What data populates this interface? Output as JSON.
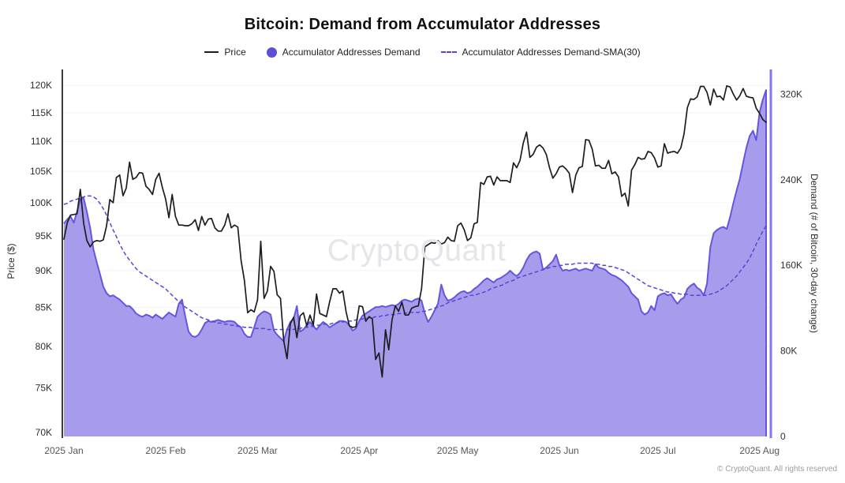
{
  "title": "Bitcoin: Demand from Accumulator Addresses",
  "watermark": "CryptoQuant",
  "copyright": "© CryptoQuant. All rights reserved",
  "legend": [
    {
      "label": "Price",
      "swatch": "line",
      "color": "#1d1d21"
    },
    {
      "label": "Accumulator Addresses Demand",
      "swatch": "dot",
      "color": "#5b4fd6"
    },
    {
      "label": "Accumulator Addresses Demand-SMA(30)",
      "swatch": "dashed",
      "color": "#5546d8"
    }
  ],
  "colors": {
    "price_line": "#1d1d21",
    "area_fill": "#a79bec",
    "area_border": "#6456dd",
    "sma_line": "#5546d8",
    "left_spine": "#3c3c43",
    "right_spine": "#8276f1",
    "grid": "#f3f3f6",
    "tick_text": "#2e2e33",
    "month_text": "#55555d"
  },
  "chart_data": {
    "type": "line+area",
    "title": "Bitcoin: Demand from Accumulator Addresses",
    "start_date": "2025-01-01",
    "end_date": "2025-08-03",
    "n_points": 215,
    "x_tick_labels": [
      "2025 Jan",
      "2025 Feb",
      "2025 Mar",
      "2025 Apr",
      "2025 May",
      "2025 Jun",
      "2025 Jul",
      "2025 Aug"
    ],
    "x_tick_day_offsets": [
      0,
      31,
      59,
      90,
      120,
      151,
      181,
      212
    ],
    "left_axis": {
      "title": "Price ($)",
      "scale": "log",
      "tick_labels": [
        "70K",
        "75K",
        "80K",
        "85K",
        "90K",
        "95K",
        "100K",
        "105K",
        "110K",
        "115K",
        "120K"
      ],
      "tick_values_k": [
        70,
        75,
        80,
        85,
        90,
        95,
        100,
        105,
        110,
        115,
        120
      ]
    },
    "right_axis": {
      "title": "Demand (# of Bitcoin, 30-day change)",
      "scale": "linear",
      "tick_labels": [
        "0",
        "80K",
        "160K",
        "240K",
        "320K"
      ],
      "tick_values_k": [
        0,
        80,
        160,
        240,
        320
      ]
    },
    "series": [
      {
        "name": "Price",
        "axis": "left",
        "unit": "USD thousands",
        "values": [
          94.5,
          96.9,
          98.1,
          98.2,
          98.3,
          102.1,
          96.9,
          94.3,
          93.4,
          94.1,
          94.3,
          94.2,
          94.4,
          96.5,
          100.5,
          100.0,
          104.0,
          104.4,
          101.1,
          102.3,
          106.5,
          103.7,
          104.0,
          104.8,
          104.7,
          102.6,
          102.1,
          101.3,
          103.7,
          104.7,
          102.4,
          100.6,
          97.7,
          101.3,
          97.9,
          96.6,
          96.6,
          96.5,
          96.5,
          96.8,
          97.4,
          95.8,
          97.9,
          96.6,
          97.5,
          97.6,
          96.2,
          95.7,
          95.7,
          96.6,
          98.3,
          96.2,
          96.6,
          96.3,
          91.4,
          88.7,
          84.3,
          84.7,
          84.4,
          86.0,
          94.2,
          86.2,
          87.2,
          90.6,
          89.9,
          86.7,
          86.2,
          80.7,
          78.5,
          82.9,
          83.7,
          81.1,
          83.9,
          84.3,
          82.6,
          84.0,
          82.7,
          86.8,
          84.2,
          84.0,
          83.8,
          85.8,
          87.5,
          87.5,
          86.9,
          87.2,
          84.4,
          82.6,
          82.4,
          82.5,
          85.2,
          85.1,
          83.2,
          83.8,
          83.5,
          78.4,
          79.2,
          76.3,
          82.1,
          79.6,
          83.4,
          85.2,
          84.5,
          85.7,
          84.0,
          84.0,
          84.9,
          85.1,
          85.2,
          87.5,
          93.4,
          93.7,
          94.0,
          93.9,
          94.3,
          93.8,
          94.0,
          94.8,
          94.3,
          94.2,
          96.5,
          96.9,
          95.9,
          94.3,
          94.7,
          96.8,
          97.0,
          103.2,
          102.9,
          104.1,
          104.2,
          102.8,
          104.1,
          103.5,
          103.5,
          103.5,
          103.2,
          106.4,
          105.6,
          106.8,
          109.7,
          111.6,
          107.3,
          107.8,
          109.0,
          109.4,
          108.9,
          107.8,
          105.6,
          103.9,
          104.6,
          105.7,
          105.9,
          105.4,
          104.7,
          101.6,
          104.4,
          105.6,
          105.8,
          110.3,
          110.2,
          108.7,
          105.9,
          106.0,
          105.5,
          105.5,
          106.8,
          104.6,
          104.9,
          104.1,
          101.0,
          101.5,
          99.5,
          105.2,
          106.1,
          107.3,
          107.0,
          107.1,
          108.3,
          108.1,
          107.2,
          105.7,
          105.9,
          109.6,
          108.0,
          108.2,
          108.3,
          108.0,
          108.9,
          111.3,
          115.9,
          117.5,
          117.4,
          117.9,
          119.8,
          119.8,
          118.7,
          116.4,
          119.3,
          117.9,
          118.0,
          117.3,
          119.9,
          119.7,
          118.4,
          117.3,
          118.1,
          119.4,
          118.0,
          117.8,
          117.7,
          115.8,
          114.9,
          113.8,
          113.3
        ]
      },
      {
        "name": "Accumulator Addresses Demand",
        "axis": "right",
        "unit": "BTC thousands",
        "values": [
          199,
          203,
          206,
          200,
          210,
          222,
          223,
          210,
          195,
          175,
          163,
          152,
          140,
          134,
          131,
          132,
          130,
          128,
          125,
          122,
          122,
          119,
          115,
          113,
          112,
          114,
          113,
          111,
          114,
          112,
          110,
          113,
          116,
          114,
          112,
          124,
          128,
          112,
          98,
          94,
          93,
          95,
          100,
          106,
          108,
          107,
          108,
          109,
          108,
          107,
          108,
          108,
          107,
          104,
          102,
          96,
          93,
          93,
          102,
          112,
          115,
          117,
          116,
          114,
          99,
          95,
          92,
          89,
          100,
          107,
          110,
          122,
          98,
          100,
          104,
          107,
          103,
          100,
          104,
          107,
          105,
          102,
          104,
          106,
          108,
          108,
          107,
          104,
          99,
          101,
          108,
          113,
          115,
          117,
          119,
          121,
          121,
          122,
          121,
          122,
          123,
          122,
          124,
          127,
          128,
          127,
          126,
          128,
          129,
          127,
          115,
          107,
          112,
          118,
          124,
          142,
          132,
          127,
          128,
          130,
          133,
          135,
          136,
          134,
          135,
          138,
          140,
          143,
          146,
          148,
          146,
          144,
          147,
          148,
          150,
          152,
          155,
          152,
          150,
          153,
          158,
          165,
          170,
          172,
          173,
          171,
          156,
          158,
          161,
          164,
          170,
          160,
          155,
          156,
          155,
          156,
          157,
          155,
          156,
          157,
          156,
          155,
          161,
          158,
          157,
          156,
          153,
          151,
          150,
          148,
          146,
          143,
          140,
          134,
          131,
          128,
          117,
          114,
          116,
          122,
          118,
          131,
          133,
          134,
          132,
          133,
          128,
          124,
          128,
          130,
          138,
          141,
          143,
          139,
          137,
          132,
          143,
          177,
          190,
          193,
          195,
          196,
          194,
          205,
          218,
          230,
          241,
          256,
          270,
          281,
          286,
          277,
          303,
          315,
          324
        ]
      },
      {
        "name": "Accumulator Addresses Demand-SMA(30)",
        "axis": "right",
        "unit": "BTC thousands",
        "values": [
          217,
          218,
          220,
          221,
          222,
          223,
          224,
          225,
          225,
          224,
          222,
          218,
          213,
          207,
          200,
          193,
          187,
          180,
          174,
          169,
          165,
          161,
          157,
          154,
          152,
          150,
          148,
          146,
          144,
          142,
          140,
          138,
          135,
          132,
          129,
          126,
          124,
          121,
          119,
          117,
          115,
          113,
          111,
          110,
          109,
          108,
          107,
          106,
          106,
          105,
          105,
          104,
          104,
          103,
          103,
          102,
          102,
          102,
          101,
          101,
          101,
          101,
          100,
          100,
          100,
          100,
          100,
          100,
          100,
          100,
          100,
          101,
          101,
          102,
          102,
          103,
          103,
          104,
          104,
          105,
          105,
          105,
          106,
          106,
          107,
          107,
          108,
          108,
          108,
          109,
          109,
          110,
          110,
          111,
          111,
          112,
          112,
          113,
          113,
          114,
          114,
          114,
          115,
          115,
          115,
          116,
          116,
          116,
          116,
          117,
          117,
          118,
          119,
          120,
          121,
          122,
          123,
          125,
          126,
          127,
          128,
          129,
          130,
          131,
          132,
          132,
          133,
          134,
          135,
          136,
          138,
          139,
          140,
          141,
          142,
          144,
          145,
          146,
          148,
          149,
          150,
          151,
          152,
          153,
          154,
          155,
          156,
          157,
          158,
          159,
          159,
          160,
          160,
          161,
          161,
          161,
          162,
          162,
          162,
          162,
          162,
          162,
          161,
          161,
          160,
          160,
          159,
          159,
          158,
          157,
          156,
          155,
          153,
          151,
          149,
          147,
          145,
          143,
          141,
          140,
          139,
          138,
          137,
          136,
          135,
          135,
          134,
          134,
          133,
          133,
          133,
          132,
          132,
          132,
          132,
          132,
          132,
          133,
          134,
          135,
          137,
          139,
          141,
          144,
          147,
          150,
          154,
          158,
          162,
          167,
          173,
          180,
          186,
          192,
          197
        ]
      }
    ]
  }
}
